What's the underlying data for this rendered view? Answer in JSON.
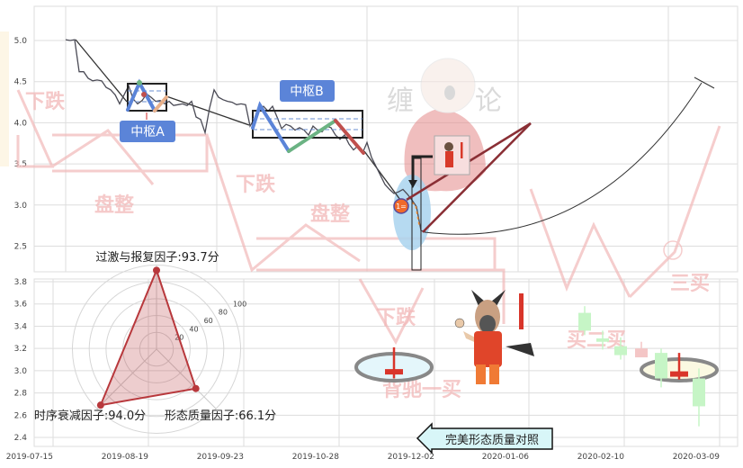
{
  "chart_data": [
    {
      "type": "line",
      "title": "",
      "yticks": [
        "5.0",
        "4.5",
        "4.0",
        "3.5",
        "3.0",
        "2.5"
      ],
      "ylim": [
        2.3,
        5.4
      ],
      "grid": true,
      "series": [
        {
          "values": [
            5.01,
            5.0,
            5.01,
            4.62,
            4.62,
            4.54,
            4.51,
            4.52,
            4.51,
            4.43,
            4.4,
            4.34,
            4.23,
            4.34,
            4.45,
            4.29,
            4.23,
            4.27,
            4.35,
            4.31,
            4.26,
            4.27,
            4.23,
            4.26,
            4.21,
            4.22,
            4.23,
            4.21,
            4.26,
            4.07,
            4.04,
            3.88,
            4.18,
            4.4,
            4.31,
            4.28,
            4.26,
            4.25,
            4.22,
            4.23,
            4.22,
            3.96,
            4.05,
            4.18,
            4.2,
            4.14,
            4.2,
            4.07,
            3.93,
            3.98,
            3.96,
            3.91,
            3.94,
            3.91,
            3.85,
            3.96,
            3.91,
            3.89,
            3.96,
            3.94,
            3.85,
            3.8,
            3.85,
            3.74,
            3.67,
            3.72,
            3.63,
            3.76,
            3.58,
            3.47,
            3.36,
            3.25,
            3.19,
            3.14,
            3.16,
            3.19,
            3.13,
            3.06,
            2.98,
            2.69,
            2.67
          ]
        }
      ],
      "annotations": {
        "pivot_a": "中枢A",
        "pivot_b": "中枢B",
        "marker": "1="
      }
    },
    {
      "type": "candlestick",
      "yticks": [
        "3.8",
        "3.6",
        "3.4",
        "3.2",
        "3.0",
        "2.8",
        "2.6",
        "2.4"
      ],
      "ylim": [
        2.35,
        3.82
      ],
      "xticks": [
        "2019-07-15",
        "2019-08-19",
        "2019-09-23",
        "2019-10-28",
        "2019-12-02",
        "2020-01-06",
        "2020-02-10",
        "2020-03-09"
      ],
      "grid": true,
      "candles": [
        {
          "open": 2.99,
          "close": 2.99,
          "high": 3.21,
          "low": 2.93,
          "color": "#d9352b",
          "highlight": true
        },
        {
          "open": 3.52,
          "close": 3.36,
          "high": 3.58,
          "low": 3.32,
          "color": "#c6f5c6"
        },
        {
          "open": 3.29,
          "close": 3.26,
          "high": 3.36,
          "low": 3.19,
          "color": "#c6f5c6"
        },
        {
          "open": 3.22,
          "close": 3.14,
          "high": 3.3,
          "low": 3.1,
          "color": "#c6f5c6"
        },
        {
          "open": 3.12,
          "close": 3.2,
          "high": 3.26,
          "low": 3.12,
          "color": "#f4c6c6"
        },
        {
          "open": 3.16,
          "close": 2.93,
          "high": 3.2,
          "low": 2.85,
          "color": "#c6f5c6"
        },
        {
          "open": 2.97,
          "close": 2.97,
          "high": 3.16,
          "low": 2.92,
          "color": "#d9352b",
          "highlight": true
        },
        {
          "open": 2.93,
          "close": 2.68,
          "high": 3.02,
          "low": 2.5,
          "color": "#c6f5c6"
        }
      ]
    },
    {
      "type": "radar",
      "rings": [
        "20",
        "40",
        "60",
        "80",
        "100"
      ],
      "max": 100,
      "axes": [
        {
          "name": "过激与报复因子",
          "value": 93.7,
          "label": "过激与报复因子:93.7分"
        },
        {
          "name": "时序衰减因子",
          "value": 94.0,
          "label": "时序衰减因子:94.0分"
        },
        {
          "name": "形态质量因子",
          "value": 66.1,
          "label": "形态质量因子:66.1分"
        }
      ],
      "color": "#b8383c"
    }
  ],
  "callout": {
    "label": "完美形态质量对照"
  },
  "watermark": {
    "brand": [
      "缠",
      "论"
    ],
    "phrases": [
      "下跌",
      "盘整",
      "下跌",
      "盘整",
      "下跌",
      "背驰一买",
      "三买",
      "买二买"
    ]
  },
  "colors": {
    "pivot_label": "#5b84d8",
    "blue_leg": "#5b84d8",
    "green_leg": "#6bb383",
    "red_leg": "#c0504d",
    "ellipse_blue": "#a9d3ef"
  }
}
